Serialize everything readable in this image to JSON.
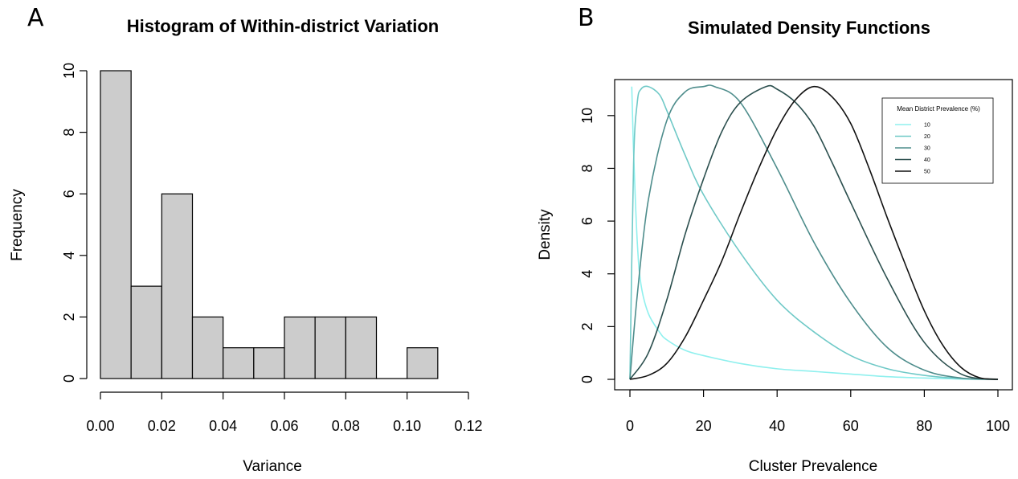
{
  "chart_data": [
    {
      "panel": "A",
      "type": "bar",
      "title": "Histogram of Within-district Variation",
      "xlabel": "Variance",
      "ylabel": "Frequency",
      "bins": [
        {
          "x0": 0.0,
          "x1": 0.01,
          "count": 10
        },
        {
          "x0": 0.01,
          "x1": 0.02,
          "count": 3
        },
        {
          "x0": 0.02,
          "x1": 0.03,
          "count": 6
        },
        {
          "x0": 0.03,
          "x1": 0.04,
          "count": 2
        },
        {
          "x0": 0.04,
          "x1": 0.05,
          "count": 1
        },
        {
          "x0": 0.05,
          "x1": 0.06,
          "count": 1
        },
        {
          "x0": 0.06,
          "x1": 0.07,
          "count": 2
        },
        {
          "x0": 0.07,
          "x1": 0.08,
          "count": 2
        },
        {
          "x0": 0.08,
          "x1": 0.09,
          "count": 2
        },
        {
          "x0": 0.09,
          "x1": 0.1,
          "count": 0
        },
        {
          "x0": 0.1,
          "x1": 0.11,
          "count": 1
        }
      ],
      "xlim": [
        0,
        0.12
      ],
      "ylim": [
        0,
        10
      ],
      "x_ticks": [
        "0.00",
        "0.02",
        "0.04",
        "0.06",
        "0.08",
        "0.10",
        "0.12"
      ],
      "y_ticks": [
        "0",
        "2",
        "4",
        "6",
        "8",
        "10"
      ],
      "bar_color": "#cccccc",
      "bar_stroke": "#000000"
    },
    {
      "panel": "B",
      "type": "line",
      "title": "Simulated Density Functions",
      "xlabel": "Cluster Prevalence",
      "ylabel": "Density",
      "xlim": [
        0,
        100
      ],
      "ylim": [
        0,
        11
      ],
      "x_ticks": [
        "0",
        "20",
        "40",
        "60",
        "80",
        "100"
      ],
      "y_ticks": [
        "0",
        "2",
        "4",
        "6",
        "8",
        "10"
      ],
      "legend": {
        "title": "Mean District Prevalence (%)",
        "position": "top-right"
      },
      "series": [
        {
          "name": "10",
          "color": "#8ff0ee",
          "x": [
            0.5,
            1,
            2,
            3,
            5,
            8,
            10,
            15,
            20,
            30,
            40,
            50,
            60,
            70,
            80,
            90,
            100
          ],
          "y": [
            11.1,
            8.6,
            5.2,
            3.6,
            2.5,
            1.8,
            1.5,
            1.1,
            0.9,
            0.6,
            0.4,
            0.3,
            0.2,
            0.1,
            0.05,
            0.01,
            0.0
          ]
        },
        {
          "name": "20",
          "color": "#6fc9c7",
          "x": [
            0,
            1,
            2,
            3,
            5,
            8,
            10,
            15,
            20,
            30,
            40,
            50,
            60,
            70,
            80,
            90,
            100
          ],
          "y": [
            0.0,
            8.2,
            10.5,
            11.0,
            11.1,
            10.8,
            10.2,
            8.5,
            7.0,
            4.8,
            3.0,
            1.8,
            0.9,
            0.4,
            0.15,
            0.03,
            0.0
          ]
        },
        {
          "name": "30",
          "color": "#4e8d8c",
          "x": [
            0,
            2,
            5,
            10,
            15,
            20,
            23,
            30,
            40,
            50,
            60,
            70,
            80,
            90,
            100
          ],
          "y": [
            0.0,
            3.2,
            6.8,
            9.8,
            10.9,
            11.1,
            11.1,
            10.5,
            8.0,
            5.2,
            2.9,
            1.2,
            0.35,
            0.05,
            0.0
          ]
        },
        {
          "name": "40",
          "color": "#2b4f4e",
          "x": [
            0,
            5,
            10,
            15,
            20,
            25,
            30,
            37,
            40,
            45,
            50,
            55,
            60,
            70,
            80,
            90,
            100
          ],
          "y": [
            0.0,
            1.0,
            3.0,
            5.5,
            7.6,
            9.4,
            10.5,
            11.1,
            11.0,
            10.5,
            9.6,
            8.2,
            6.7,
            3.8,
            1.4,
            0.2,
            0.0
          ]
        },
        {
          "name": "50",
          "color": "#111111",
          "x": [
            0,
            5,
            10,
            15,
            20,
            25,
            30,
            35,
            40,
            45,
            50,
            55,
            60,
            65,
            70,
            75,
            80,
            85,
            90,
            95,
            100
          ],
          "y": [
            0.0,
            0.15,
            0.6,
            1.6,
            3.0,
            4.5,
            6.3,
            8.0,
            9.5,
            10.6,
            11.1,
            10.7,
            9.7,
            8.0,
            6.1,
            4.3,
            2.6,
            1.3,
            0.45,
            0.06,
            0.0
          ]
        }
      ]
    }
  ]
}
